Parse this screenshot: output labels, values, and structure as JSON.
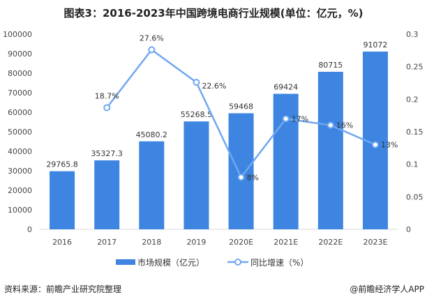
{
  "title": "图表3：2016-2023年中国跨境电商行业规模(单位：亿元，%)",
  "source": "资料来源：前瞻产业研究院整理",
  "brand": "@前瞻经济学人APP",
  "chart_data": {
    "type": "bar+line",
    "categories": [
      "2016",
      "2017",
      "2018",
      "2019",
      "2020E",
      "2021E",
      "2022E",
      "2023E"
    ],
    "series": [
      {
        "name": "市场规模（亿元）",
        "type": "bar",
        "axis": "left",
        "color": "#3d85e0",
        "values": [
          29765.8,
          35327.3,
          45080.2,
          55268.5,
          59468,
          69424,
          80715,
          91072
        ],
        "labels": [
          "29765.8",
          "35327.3",
          "45080.2",
          "55268.5",
          "59468",
          "69424",
          "80715",
          "91072"
        ]
      },
      {
        "name": "同比增速（%）",
        "type": "line",
        "axis": "right",
        "color": "#6fa8f0",
        "values": [
          null,
          0.187,
          0.276,
          0.226,
          0.08,
          0.17,
          0.16,
          0.13
        ],
        "labels": [
          "",
          "18.7%",
          "27.6%",
          "22.6%",
          "8%",
          "17%",
          "16%",
          "13%"
        ]
      }
    ],
    "left_axis": {
      "ylim": [
        0,
        100000
      ],
      "ticks": [
        "0",
        "10000",
        "20000",
        "30000",
        "40000",
        "50000",
        "60000",
        "70000",
        "80000",
        "90000",
        "100000"
      ]
    },
    "right_axis": {
      "ylim": [
        0,
        0.3
      ],
      "ticks": [
        "0",
        "0.05",
        "0.1",
        "0.15",
        "0.2",
        "0.25",
        "0.3"
      ]
    },
    "grid": false,
    "legend": "bottom"
  }
}
